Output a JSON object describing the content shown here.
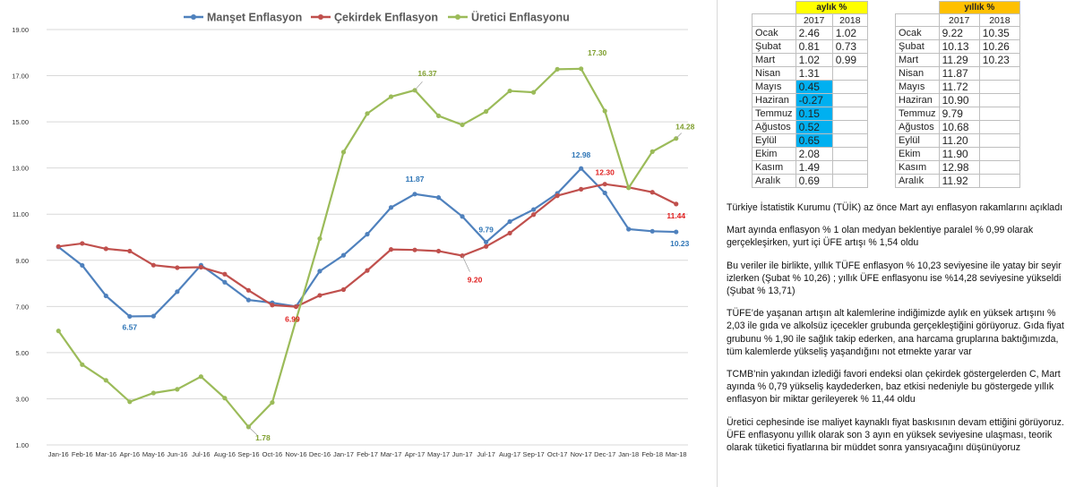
{
  "chart_data": {
    "type": "line",
    "categories": [
      "Jan-16",
      "Feb-16",
      "Mar-16",
      "Apr-16",
      "May-16",
      "Jun-16",
      "Jul-16",
      "Aug-16",
      "Sep-16",
      "Oct-16",
      "Nov-16",
      "Dec-16",
      "Jan-17",
      "Feb-17",
      "Mar-17",
      "Apr-17",
      "May-17",
      "Jun-17",
      "Jul-17",
      "Aug-17",
      "Sep-17",
      "Oct-17",
      "Nov-17",
      "Dec-17",
      "Jan-18",
      "Feb-18",
      "Mar-18"
    ],
    "series": [
      {
        "name": "Manşet Enflasyon",
        "color": "#4f81bd",
        "values": [
          9.58,
          8.78,
          7.46,
          6.57,
          6.58,
          7.64,
          8.79,
          8.05,
          7.28,
          7.16,
          7.0,
          8.53,
          9.22,
          10.13,
          11.29,
          11.87,
          11.72,
          10.9,
          9.79,
          10.68,
          11.2,
          11.9,
          12.98,
          11.92,
          10.35,
          10.26,
          10.23
        ]
      },
      {
        "name": "Çekirdek Enflasyon",
        "color": "#c0504d",
        "values": [
          9.6,
          9.73,
          9.5,
          9.4,
          8.79,
          8.68,
          8.7,
          8.4,
          7.7,
          7.06,
          6.99,
          7.48,
          7.73,
          8.56,
          9.47,
          9.45,
          9.4,
          9.2,
          9.6,
          10.18,
          10.98,
          11.8,
          12.08,
          12.3,
          12.16,
          11.95,
          11.44
        ]
      },
      {
        "name": "Üretici Enflasyonu",
        "color": "#9bbb59",
        "values": [
          5.94,
          4.48,
          3.8,
          2.87,
          3.25,
          3.41,
          3.96,
          3.03,
          1.78,
          2.84,
          6.41,
          9.94,
          13.69,
          15.36,
          16.09,
          16.37,
          15.26,
          14.87,
          15.45,
          16.34,
          16.28,
          17.28,
          17.3,
          15.47,
          12.14,
          13.71,
          14.28
        ]
      }
    ],
    "data_labels": [
      {
        "series": 0,
        "index": 3,
        "text": "6.57"
      },
      {
        "series": 0,
        "index": 15,
        "text": "11.87"
      },
      {
        "series": 0,
        "index": 18,
        "text": "9.79"
      },
      {
        "series": 0,
        "index": 22,
        "text": "12.98"
      },
      {
        "series": 0,
        "index": 26,
        "text": "10.23"
      },
      {
        "series": 1,
        "index": 10,
        "text": "6.99"
      },
      {
        "series": 1,
        "index": 17,
        "text": "9.20"
      },
      {
        "series": 1,
        "index": 23,
        "text": "12.30"
      },
      {
        "series": 1,
        "index": 26,
        "text": "11.44"
      },
      {
        "series": 2,
        "index": 8,
        "text": "1.78"
      },
      {
        "series": 2,
        "index": 15,
        "text": "16.37"
      },
      {
        "series": 2,
        "index": 22,
        "text": "17.30"
      },
      {
        "series": 2,
        "index": 26,
        "text": "14.28"
      }
    ],
    "y_ticks": [
      "1.00",
      "3.00",
      "5.00",
      "7.00",
      "9.00",
      "11.00",
      "13.00",
      "15.00",
      "17.00",
      "19.00"
    ],
    "ylim": [
      1,
      19
    ],
    "grid": true,
    "legend_position": "top"
  },
  "tables": {
    "monthly": {
      "title": "aylık %",
      "years": [
        "2017",
        "2018"
      ],
      "rows": [
        {
          "month": "Ocak",
          "v2017": "2.46",
          "v2018": "1.02"
        },
        {
          "month": "Şubat",
          "v2017": "0.81",
          "v2018": "0.73"
        },
        {
          "month": "Mart",
          "v2017": "1.02",
          "v2018": "0.99"
        },
        {
          "month": "Nisan",
          "v2017": "1.31",
          "v2018": ""
        },
        {
          "month": "Mayıs",
          "v2017": "0.45",
          "v2018": ""
        },
        {
          "month": "Haziran",
          "v2017": "-0.27",
          "v2018": ""
        },
        {
          "month": "Temmuz",
          "v2017": "0.15",
          "v2018": ""
        },
        {
          "month": "Ağustos",
          "v2017": "0.52",
          "v2018": ""
        },
        {
          "month": "Eylül",
          "v2017": "0.65",
          "v2018": ""
        },
        {
          "month": "Ekim",
          "v2017": "2.08",
          "v2018": ""
        },
        {
          "month": "Kasım",
          "v2017": "1.49",
          "v2018": ""
        },
        {
          "month": "Aralık",
          "v2017": "0.69",
          "v2018": ""
        }
      ]
    },
    "yearly": {
      "title": "yıllık %",
      "years": [
        "2017",
        "2018"
      ],
      "rows": [
        {
          "month": "Ocak",
          "v2017": "9.22",
          "v2018": "10.35"
        },
        {
          "month": "Şubat",
          "v2017": "10.13",
          "v2018": "10.26"
        },
        {
          "month": "Mart",
          "v2017": "11.29",
          "v2018": "10.23"
        },
        {
          "month": "Nisan",
          "v2017": "11.87",
          "v2018": ""
        },
        {
          "month": "Mayıs",
          "v2017": "11.72",
          "v2018": ""
        },
        {
          "month": "Haziran",
          "v2017": "10.90",
          "v2018": ""
        },
        {
          "month": "Temmuz",
          "v2017": "9.79",
          "v2018": ""
        },
        {
          "month": "Ağustos",
          "v2017": "10.68",
          "v2018": ""
        },
        {
          "month": "Eylül",
          "v2017": "11.20",
          "v2018": ""
        },
        {
          "month": "Ekim",
          "v2017": "11.90",
          "v2018": ""
        },
        {
          "month": "Kasım",
          "v2017": "12.98",
          "v2018": ""
        },
        {
          "month": "Aralık",
          "v2017": "11.92",
          "v2018": ""
        }
      ]
    }
  },
  "colors": {
    "highlight_blue": "#00b0f0",
    "header_yellow": "#ffff00",
    "header_orange": "#ffc000"
  },
  "commentary": [
    "Türkiye İstatistik Kurumu (TÜİK) az önce Mart ayı enflasyon rakamlarını açıkladı",
    "Mart ayında enflasyon % 1 olan medyan beklentiye paralel % 0,99 olarak gerçekleşirken, yurt içi ÜFE artışı % 1,54 oldu",
    "Bu veriler ile birlikte, yıllık TÜFE enflasyon % 10,23 seviyesine ile yatay bir seyir izlerken (Şubat % 10,26) ; yıllık ÜFE enflasyonu ise %14,28 seviyesine yükseldi (Şubat % 13,71)",
    "TÜFE’de yaşanan artışın alt kalemlerine indiğimizde aylık en yüksek artışını % 2,03 ile gıda ve alkolsüz içecekler grubunda gerçekleştiğini görüyoruz. Gıda fiyat grubunu % 1,90 ile sağlık takip ederken, ana harcama gruplarına baktığımızda, tüm kalemlerde yükseliş yaşandığını not etmekte yarar var",
    "TCMB’nin yakından izlediği favori endeksi olan çekirdek göstergelerden C, Mart ayında % 0,79 yükseliş kaydederken, baz etkisi nedeniyle bu göstergede yıllık enflasyon bir miktar gerileyerek % 11,44 oldu",
    "Üretici cephesinde ise maliyet kaynaklı fiyat baskısının devam ettiğini görüyoruz. ÜFE enflasyonu yıllık olarak son 3 ayın en yüksek seviyesine ulaşması, teorik olarak tüketici fiyatlarına bir müddet sonra yansıyacağını düşünüyoruz"
  ]
}
